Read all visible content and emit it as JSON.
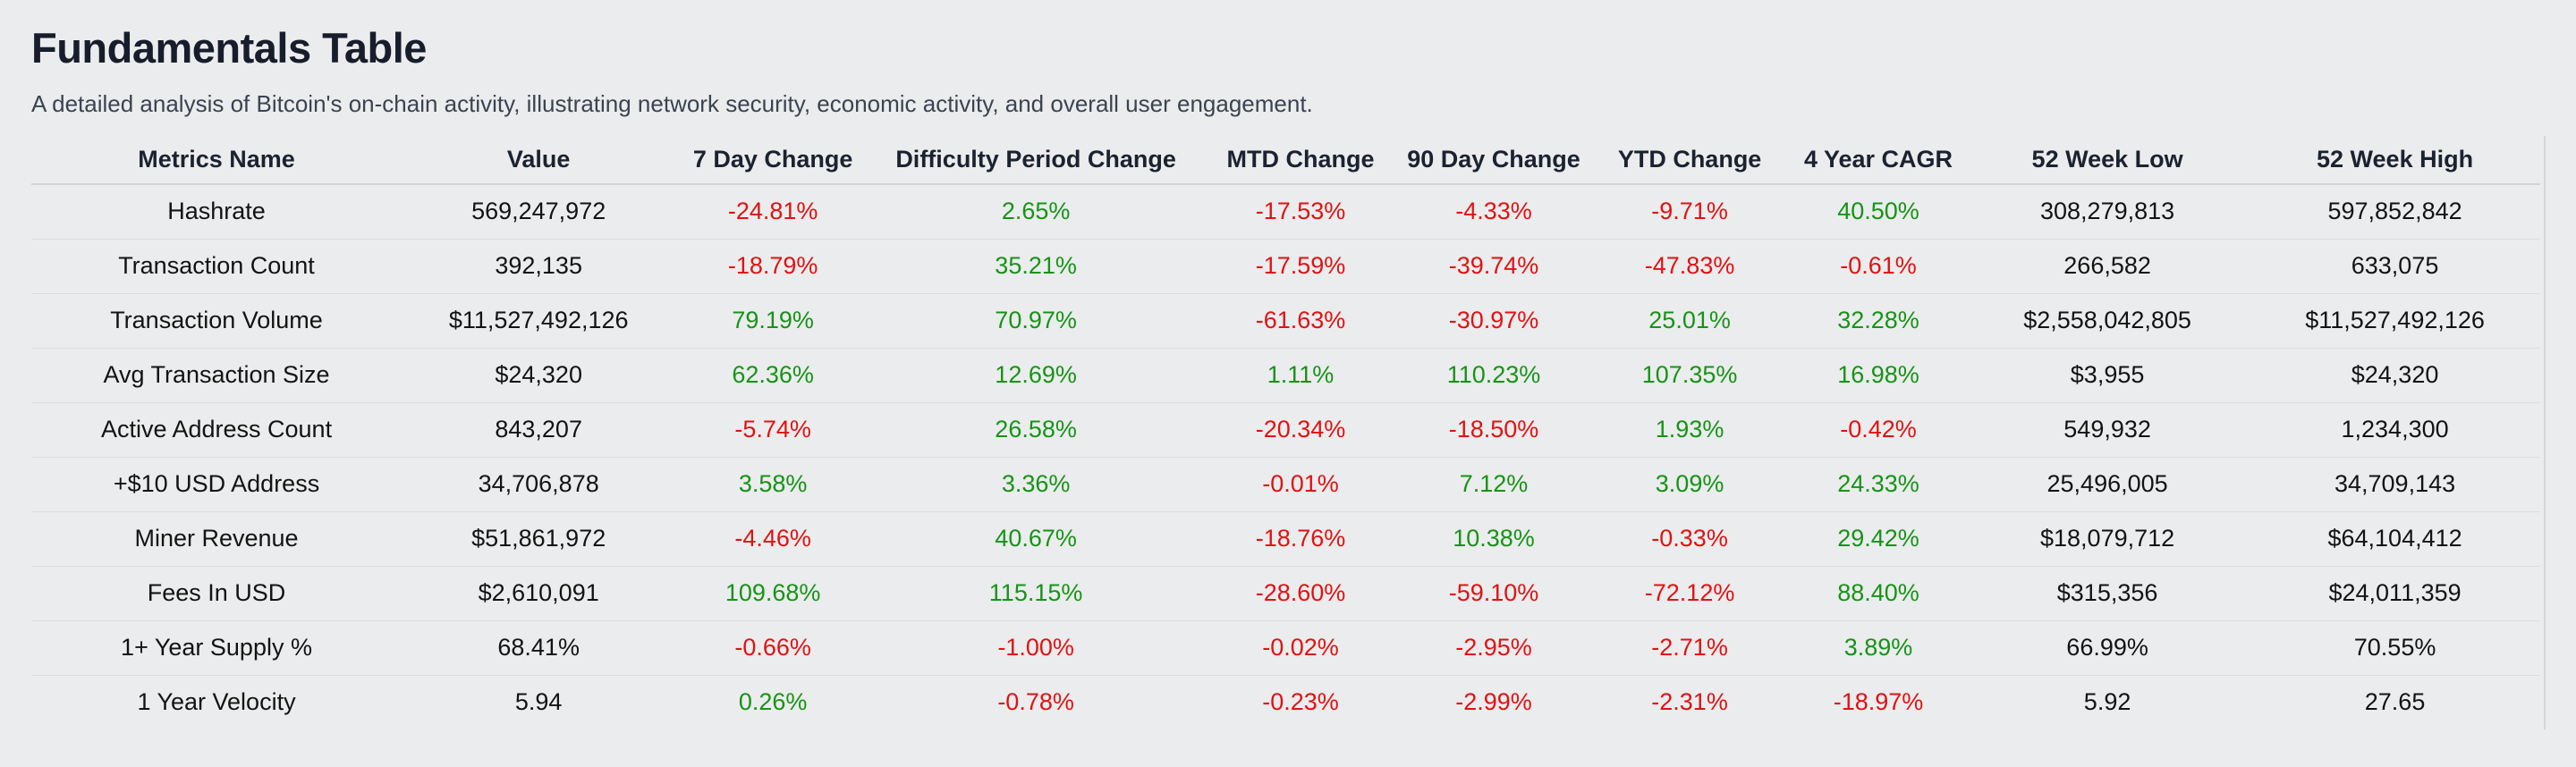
{
  "page": {
    "title": "Fundamentals Table",
    "subtitle": "A detailed analysis of Bitcoin's on-chain activity, illustrating network security, economic activity, and overall user engagement."
  },
  "colors": {
    "positive_change": "#169416",
    "negative_change": "#e11212",
    "default_text": "#131313",
    "header_text": "#1b2230"
  },
  "table": {
    "columns": [
      "Metrics Name",
      "Value",
      "7 Day Change",
      "Difficulty Period Change",
      "MTD Change",
      "90 Day Change",
      "YTD Change",
      "4 Year CAGR",
      "52 Week Low",
      "52 Week High"
    ],
    "change_column_indices": [
      2,
      3,
      4,
      5,
      6,
      7
    ],
    "rows": [
      [
        "Hashrate",
        "569,247,972",
        "-24.81%",
        "2.65%",
        "-17.53%",
        "-4.33%",
        "-9.71%",
        "40.50%",
        "308,279,813",
        "597,852,842"
      ],
      [
        "Transaction Count",
        "392,135",
        "-18.79%",
        "35.21%",
        "-17.59%",
        "-39.74%",
        "-47.83%",
        "-0.61%",
        "266,582",
        "633,075"
      ],
      [
        "Transaction Volume",
        "$11,527,492,126",
        "79.19%",
        "70.97%",
        "-61.63%",
        "-30.97%",
        "25.01%",
        "32.28%",
        "$2,558,042,805",
        "$11,527,492,126"
      ],
      [
        "Avg Transaction Size",
        "$24,320",
        "62.36%",
        "12.69%",
        "1.11%",
        "110.23%",
        "107.35%",
        "16.98%",
        "$3,955",
        "$24,320"
      ],
      [
        "Active Address Count",
        "843,207",
        "-5.74%",
        "26.58%",
        "-20.34%",
        "-18.50%",
        "1.93%",
        "-0.42%",
        "549,932",
        "1,234,300"
      ],
      [
        "+$10 USD Address",
        "34,706,878",
        "3.58%",
        "3.36%",
        "-0.01%",
        "7.12%",
        "3.09%",
        "24.33%",
        "25,496,005",
        "34,709,143"
      ],
      [
        "Miner Revenue",
        "$51,861,972",
        "-4.46%",
        "40.67%",
        "-18.76%",
        "10.38%",
        "-0.33%",
        "29.42%",
        "$18,079,712",
        "$64,104,412"
      ],
      [
        "Fees In USD",
        "$2,610,091",
        "109.68%",
        "115.15%",
        "-28.60%",
        "-59.10%",
        "-72.12%",
        "88.40%",
        "$315,356",
        "$24,011,359"
      ],
      [
        "1+ Year Supply %",
        "68.41%",
        "-0.66%",
        "-1.00%",
        "-0.02%",
        "-2.95%",
        "-2.71%",
        "3.89%",
        "66.99%",
        "70.55%"
      ],
      [
        "1 Year Velocity",
        "5.94",
        "0.26%",
        "-0.78%",
        "-0.23%",
        "-2.99%",
        "-2.31%",
        "-18.97%",
        "5.92",
        "27.65"
      ]
    ]
  }
}
